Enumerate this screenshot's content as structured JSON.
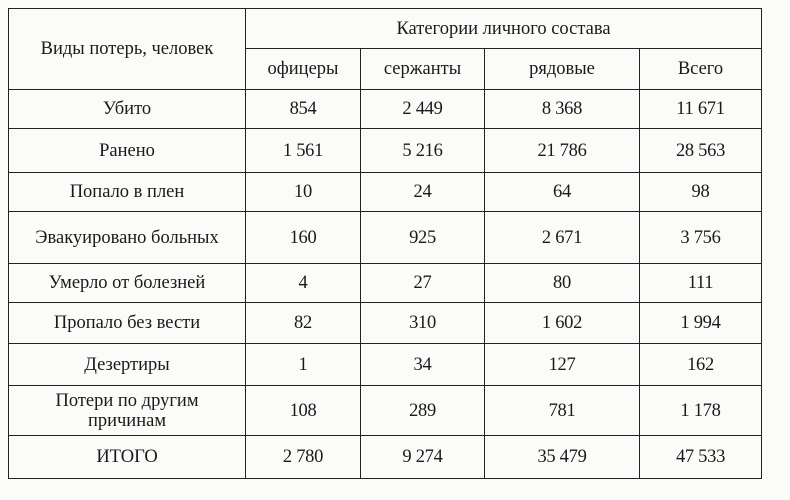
{
  "table": {
    "row_header": "Виды потерь, человек",
    "group_header": "Категории личного состава",
    "columns": [
      "офицеры",
      "сержанты",
      "рядовые",
      "Всего"
    ],
    "rows": [
      {
        "label": "Убито",
        "values": [
          "854",
          "2 449",
          "8 368",
          "11 671"
        ]
      },
      {
        "label": "Ранено",
        "values": [
          "1 561",
          "5 216",
          "21 786",
          "28 563"
        ]
      },
      {
        "label": "Попало в плен",
        "values": [
          "10",
          "24",
          "64",
          "98"
        ]
      },
      {
        "label": "Эвакуировано больных",
        "values": [
          "160",
          "925",
          "2 671",
          "3 756"
        ]
      },
      {
        "label": "Умерло от болезней",
        "values": [
          "4",
          "27",
          "80",
          "111"
        ]
      },
      {
        "label": "Пропало без вести",
        "values": [
          "82",
          "310",
          "1 602",
          "1 994"
        ]
      },
      {
        "label": "Дезертиры",
        "values": [
          "1",
          "34",
          "127",
          "162"
        ]
      },
      {
        "label": "Потери по другим причинам",
        "values": [
          "108",
          "289",
          "781",
          "1 178"
        ]
      },
      {
        "label": "ИТОГО",
        "values": [
          "2 780",
          "9 274",
          "35 479",
          "47 533"
        ]
      }
    ]
  }
}
